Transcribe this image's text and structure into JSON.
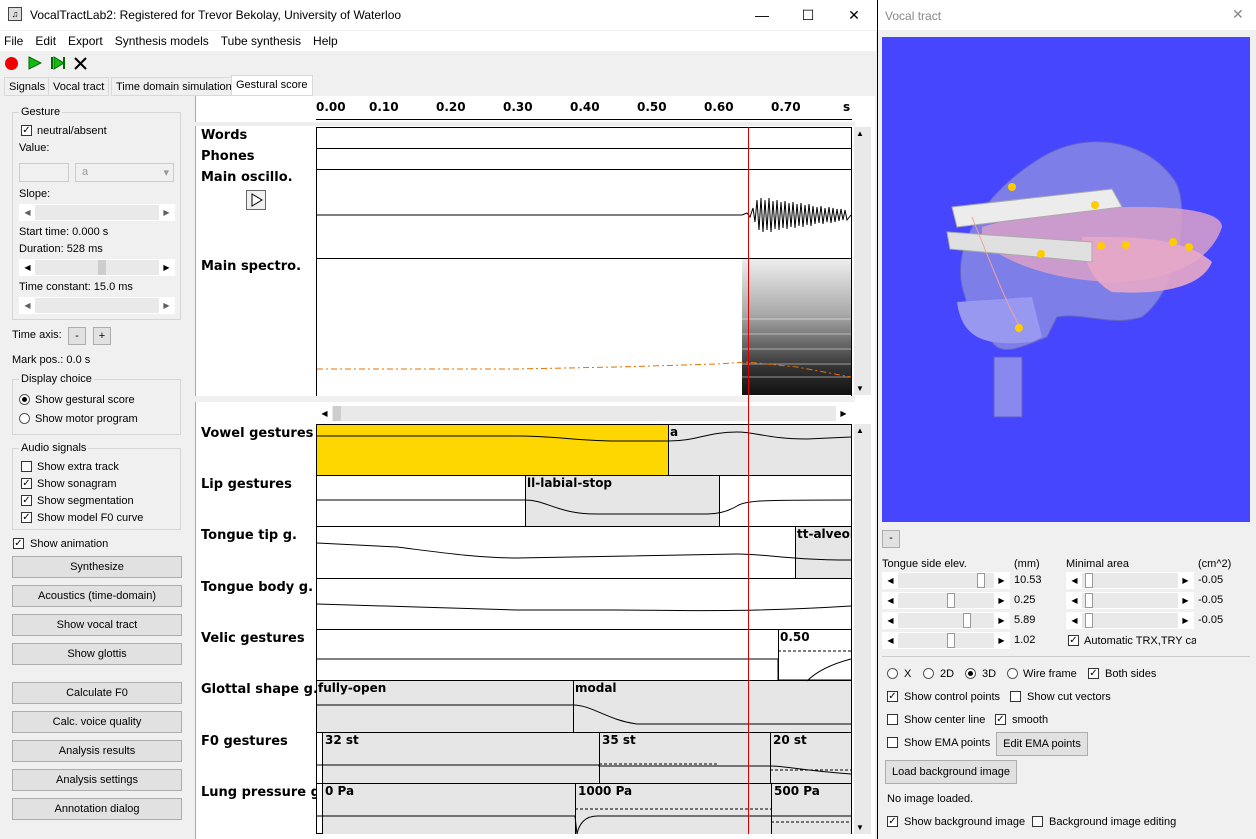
{
  "main_window": {
    "title": "VocalTractLab2: Registered for Trevor Bekolay, University of Waterloo",
    "minimize": "—",
    "maximize": "☐",
    "close": "✕",
    "menu": [
      "File",
      "Edit",
      "Export",
      "Synthesis models",
      "Tube synthesis",
      "Help"
    ],
    "tabs": [
      "Signals",
      "Vocal tract",
      "Time domain simulation",
      "Gestural score"
    ],
    "active_tab": "Gestural score"
  },
  "left_panel": {
    "gesture_group": "Gesture",
    "neutral_label": "neutral/absent",
    "value_label": "Value:",
    "value_select": "a",
    "slope_label": "Slope:",
    "start_time": "Start time:  0.000 s",
    "duration": "Duration:  528 ms",
    "time_constant": "Time constant:  15.0 ms",
    "time_axis": "Time axis:",
    "minus": "-",
    "plus": "+",
    "mark_pos": "Mark pos.:  0.0 s",
    "display_choice": "Display choice",
    "show_gestural_score": "Show gestural score",
    "show_motor_program": "Show motor program",
    "audio_signals": "Audio signals",
    "show_extra_track": "Show extra track",
    "show_sonagram": "Show sonagram",
    "show_segmentation": "Show segmentation",
    "show_model_f0": "Show model F0 curve",
    "show_animation": "Show animation",
    "buttons": [
      "Synthesize",
      "Acoustics (time-domain)",
      "Show vocal tract",
      "Show glottis",
      "Calculate F0",
      "Calc. voice quality",
      "Analysis results",
      "Analysis settings",
      "Annotation dialog"
    ]
  },
  "score": {
    "ticks": [
      "0.00",
      "0.10",
      "0.20",
      "0.30",
      "0.40",
      "0.50",
      "0.60",
      "0.70",
      "s"
    ],
    "rows_top": [
      "Words",
      "Phones",
      "Main oscillo.",
      "Main spectro."
    ],
    "rows": [
      "Vowel gestures",
      "Lip gestures",
      "Tongue tip g.",
      "Tongue body g.",
      "Velic gestures",
      "Glottal shape g.",
      "F0 gestures",
      "Lung pressure g."
    ],
    "vowel_seg": "a",
    "lip_seg": "ll-labial-stop",
    "tongue_tip_seg": "tt-alveola",
    "velic_seg": "0.50",
    "glottal_segs": [
      "fully-open",
      "modal"
    ],
    "f0_segs": [
      "32 st",
      "35 st",
      "20 st"
    ],
    "lung_segs": [
      "0 Pa",
      "1000 Pa",
      "500 Pa"
    ],
    "vowel_color": "#ffd700"
  },
  "vocal_tract_window": {
    "title": "Vocal tract",
    "close": "✕",
    "reset": "-",
    "tongue_side": "Tongue side elev.",
    "mm": "(mm)",
    "minimal_area": "Minimal area",
    "cm2": "(cm^2)",
    "left_values": [
      "10.53",
      "0.25",
      "5.89",
      "1.02"
    ],
    "right_values": [
      "-0.05",
      "-0.05",
      "-0.05"
    ],
    "auto_trx": "Automatic TRX,TRY calc",
    "view_x": "X",
    "view_2d": "2D",
    "view_3d": "3D",
    "wire_frame": "Wire frame",
    "both_sides": "Both sides",
    "show_control_points": "Show control points",
    "show_cut_vectors": "Show cut vectors",
    "show_center_line": "Show center line",
    "smooth": "smooth",
    "show_ema": "Show EMA points",
    "edit_ema": "Edit EMA points",
    "load_bg": "Load background image",
    "no_image": "No image loaded.",
    "show_bg": "Show background image",
    "bg_editing": "Background image editing",
    "viewport_bg": "#4646ff"
  }
}
